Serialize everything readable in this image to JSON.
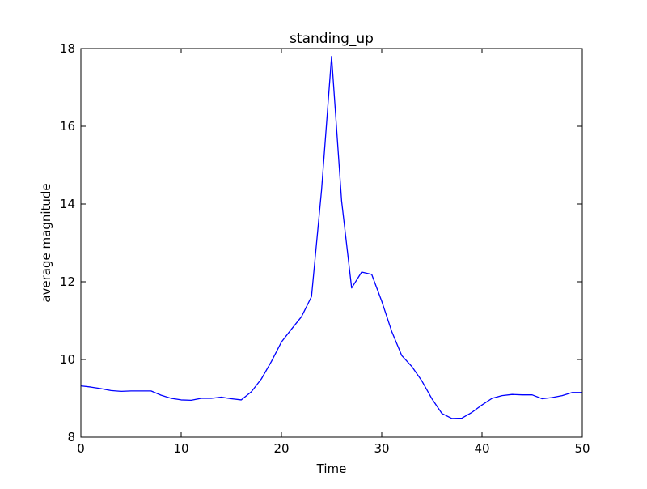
{
  "chart_data": {
    "type": "line",
    "title": "standing_up",
    "xlabel": "Time",
    "ylabel": "average magnitude",
    "xlim": [
      0,
      50
    ],
    "ylim": [
      8,
      18
    ],
    "xticks": [
      0,
      10,
      20,
      30,
      40,
      50
    ],
    "yticks": [
      8,
      10,
      12,
      14,
      16,
      18
    ],
    "grid": false,
    "series": [
      {
        "color": "#0000ff",
        "x": [
          0,
          1,
          2,
          3,
          4,
          5,
          6,
          7,
          8,
          9,
          10,
          11,
          12,
          13,
          14,
          15,
          16,
          17,
          18,
          19,
          20,
          21,
          22,
          23,
          24,
          25,
          26,
          27,
          28,
          29,
          30,
          31,
          32,
          33,
          34,
          35,
          36,
          37,
          38,
          39,
          40,
          41,
          42,
          43,
          44,
          45,
          46,
          47,
          48,
          49,
          50
        ],
        "values": [
          9.32,
          9.29,
          9.25,
          9.2,
          9.18,
          9.19,
          9.19,
          9.19,
          9.08,
          9.0,
          8.96,
          8.95,
          9.0,
          9.0,
          9.03,
          8.99,
          8.96,
          9.17,
          9.5,
          9.95,
          10.45,
          10.78,
          11.1,
          11.62,
          14.36,
          17.8,
          14.08,
          11.84,
          12.25,
          12.19,
          11.5,
          10.72,
          10.1,
          9.82,
          9.45,
          8.99,
          8.61,
          8.48,
          8.49,
          8.64,
          8.83,
          9.0,
          9.07,
          9.1,
          9.09,
          9.09,
          8.99,
          9.02,
          9.07,
          9.15,
          9.15
        ]
      }
    ]
  }
}
